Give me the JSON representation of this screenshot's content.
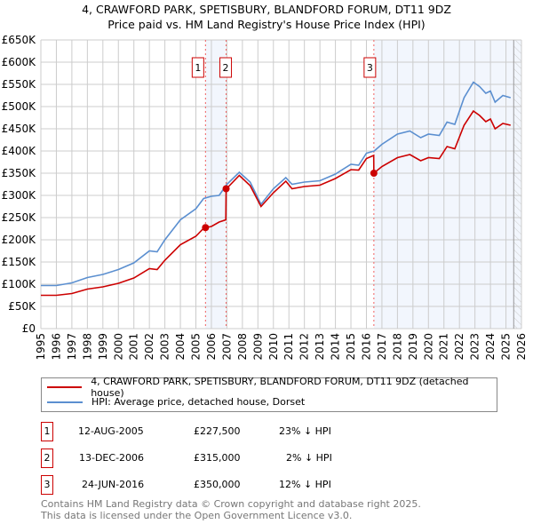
{
  "title": "4, CRAWFORD PARK, SPETISBURY, BLANDFORD FORUM, DT11 9DZ",
  "subtitle": "Price paid vs. HM Land Registry's House Price Index (HPI)",
  "chart_data": {
    "type": "line",
    "xlim": [
      1995,
      2026
    ],
    "ylim": [
      0,
      650
    ],
    "yticks": [
      0,
      50,
      100,
      150,
      200,
      250,
      300,
      350,
      400,
      450,
      500,
      550,
      600,
      650
    ],
    "ytick_labels": [
      "£0",
      "£50K",
      "£100K",
      "£150K",
      "£200K",
      "£250K",
      "£300K",
      "£350K",
      "£400K",
      "£450K",
      "£500K",
      "£550K",
      "£600K",
      "£650K"
    ],
    "xticks": [
      1995,
      1996,
      1997,
      1998,
      1999,
      2000,
      2001,
      2002,
      2003,
      2004,
      2005,
      2006,
      2007,
      2008,
      2009,
      2010,
      2011,
      2012,
      2013,
      2014,
      2015,
      2016,
      2017,
      2018,
      2019,
      2020,
      2021,
      2022,
      2023,
      2024,
      2025,
      2026
    ],
    "grid": true,
    "series": [
      {
        "name": "4, CRAWFORD PARK, SPETISBURY, BLANDFORD FORUM, DT11 9DZ (detached house)",
        "color": "#cc0000",
        "x": [
          1995,
          1996,
          1997,
          1998,
          1999,
          2000,
          2001,
          2002,
          2002.5,
          2003,
          2004,
          2005,
          2005.5,
          2005.62,
          2006,
          2006.5,
          2006.93,
          2006.95,
          2007,
          2007.8,
          2008.5,
          2009.2,
          2010,
          2010.8,
          2011.2,
          2012,
          2013,
          2014,
          2015,
          2015.5,
          2016,
          2016.47,
          2016.48,
          2017,
          2018,
          2018.8,
          2019.5,
          2020,
          2020.7,
          2021.2,
          2021.7,
          2022.3,
          2022.9,
          2023.3,
          2023.7,
          2024,
          2024.3,
          2024.8,
          2025.3
        ],
        "values": [
          75,
          75,
          79,
          89,
          94,
          102,
          114,
          135,
          133,
          154,
          189,
          208,
          226,
          227.5,
          230,
          240,
          245,
          315,
          316,
          345,
          322,
          275,
          306,
          332,
          315,
          320,
          323,
          338,
          358,
          357,
          383,
          390,
          350,
          365,
          385,
          392,
          378,
          385,
          383,
          410,
          405,
          458,
          490,
          480,
          466,
          472,
          450,
          462,
          458
        ]
      },
      {
        "name": "HPI: Average price, detached house, Dorset",
        "color": "#5b8fd0",
        "x": [
          1995,
          1996,
          1997,
          1998,
          1999,
          2000,
          2001,
          2002,
          2002.5,
          2003,
          2004,
          2005,
          2005.5,
          2006,
          2006.5,
          2007,
          2007.8,
          2008.5,
          2009.2,
          2010,
          2010.8,
          2011.2,
          2012,
          2013,
          2014,
          2015,
          2015.5,
          2016,
          2016.5,
          2017,
          2018,
          2018.8,
          2019.5,
          2020,
          2020.7,
          2021.2,
          2021.7,
          2022.3,
          2022.9,
          2023.3,
          2023.7,
          2024,
          2024.3,
          2024.8,
          2025.3
        ],
        "values": [
          97,
          97,
          103,
          115,
          122,
          133,
          148,
          175,
          173,
          200,
          245,
          270,
          293,
          298,
          300,
          325,
          352,
          330,
          280,
          315,
          340,
          325,
          330,
          333,
          348,
          370,
          368,
          395,
          400,
          415,
          438,
          445,
          430,
          438,
          435,
          465,
          460,
          520,
          555,
          545,
          530,
          535,
          510,
          525,
          520
        ]
      }
    ],
    "sales": [
      {
        "label": "1",
        "date": "12-AUG-2005",
        "x": 2005.62,
        "price": "£227,500",
        "value": 227.5,
        "hpi": "23% ↓ HPI"
      },
      {
        "label": "2",
        "date": "13-DEC-2006",
        "x": 2006.95,
        "price": "£315,000",
        "value": 315,
        "hpi": "2% ↓ HPI"
      },
      {
        "label": "3",
        "date": "24-JUN-2016",
        "x": 2016.48,
        "price": "£350,000",
        "value": 350,
        "hpi": "12% ↓ HPI"
      }
    ]
  },
  "footer": [
    "Contains HM Land Registry data © Crown copyright and database right 2025.",
    "This data is licensed under the Open Government Licence v3.0."
  ]
}
